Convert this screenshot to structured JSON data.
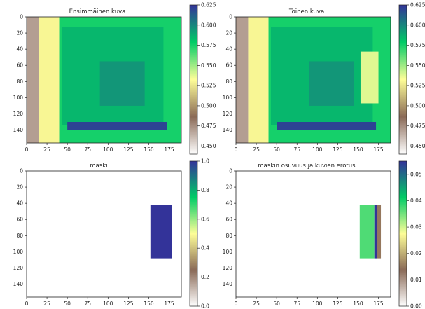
{
  "chart_data": [
    {
      "type": "heatmap",
      "title": "Ensimmäinen kuva",
      "xlabel": "",
      "ylabel": "",
      "xlim": [
        0,
        190
      ],
      "ylim": [
        156,
        0
      ],
      "xticks": [
        "0",
        "25",
        "50",
        "75",
        "100",
        "125",
        "150",
        "175"
      ],
      "yticks": [
        "0",
        "20",
        "40",
        "60",
        "80",
        "100",
        "120",
        "140"
      ],
      "colorbar": {
        "min": 0.44,
        "max": 0.625,
        "ticks": [
          "0.450",
          "0.475",
          "0.500",
          "0.525",
          "0.550",
          "0.575",
          "0.600",
          "0.625"
        ]
      },
      "colormap": "terrain_r",
      "regions": [
        {
          "name": "left margin",
          "x": [
            0,
            15
          ],
          "y": [
            0,
            156
          ],
          "value": 0.47
        },
        {
          "name": "edge ramp",
          "x": [
            15,
            40
          ],
          "y": [
            0,
            156
          ],
          "value": 0.53
        },
        {
          "name": "background",
          "x": [
            40,
            190
          ],
          "y": [
            0,
            156
          ],
          "value": 0.575
        },
        {
          "name": "plate",
          "x": [
            43,
            168
          ],
          "y": [
            13,
            134
          ],
          "value": 0.585
        },
        {
          "name": "center low",
          "x": [
            90,
            145
          ],
          "y": [
            55,
            110
          ],
          "value": 0.595
        },
        {
          "name": "bottom band",
          "x": [
            50,
            172
          ],
          "y": [
            130,
            140
          ],
          "value": 0.62
        }
      ]
    },
    {
      "type": "heatmap",
      "title": "Toinen kuva",
      "xlabel": "",
      "ylabel": "",
      "xlim": [
        0,
        190
      ],
      "ylim": [
        156,
        0
      ],
      "xticks": [
        "0",
        "25",
        "50",
        "75",
        "100",
        "125",
        "150",
        "175"
      ],
      "yticks": [
        "0",
        "20",
        "40",
        "60",
        "80",
        "100",
        "120",
        "140"
      ],
      "colorbar": {
        "min": 0.44,
        "max": 0.625,
        "ticks": [
          "0.450",
          "0.475",
          "0.500",
          "0.525",
          "0.550",
          "0.575",
          "0.600",
          "0.625"
        ]
      },
      "colormap": "terrain_r",
      "regions": [
        {
          "name": "left margin",
          "x": [
            0,
            15
          ],
          "y": [
            0,
            156
          ],
          "value": 0.47
        },
        {
          "name": "edge ramp",
          "x": [
            15,
            40
          ],
          "y": [
            0,
            156
          ],
          "value": 0.53
        },
        {
          "name": "background",
          "x": [
            40,
            190
          ],
          "y": [
            0,
            156
          ],
          "value": 0.575
        },
        {
          "name": "plate",
          "x": [
            43,
            168
          ],
          "y": [
            13,
            134
          ],
          "value": 0.585
        },
        {
          "name": "center low",
          "x": [
            90,
            145
          ],
          "y": [
            55,
            110
          ],
          "value": 0.595
        },
        {
          "name": "bottom band",
          "x": [
            50,
            172
          ],
          "y": [
            130,
            140
          ],
          "value": 0.62
        },
        {
          "name": "object",
          "x": [
            153,
            175
          ],
          "y": [
            43,
            107
          ],
          "value": 0.538
        }
      ]
    },
    {
      "type": "heatmap",
      "title": "maski",
      "xlabel": "",
      "ylabel": "",
      "xlim": [
        0,
        190
      ],
      "ylim": [
        156,
        0
      ],
      "xticks": [
        "0",
        "25",
        "50",
        "75",
        "100",
        "125",
        "150",
        "175"
      ],
      "yticks": [
        "0",
        "20",
        "40",
        "60",
        "80",
        "100",
        "120",
        "140"
      ],
      "colorbar": {
        "min": 0.0,
        "max": 1.0,
        "ticks": [
          "0.0",
          "0.2",
          "0.4",
          "0.6",
          "0.8",
          "1.0"
        ]
      },
      "colormap": "terrain_r",
      "regions": [
        {
          "name": "mask",
          "x": [
            152,
            178
          ],
          "y": [
            42,
            108
          ],
          "value": 1.0
        }
      ]
    },
    {
      "type": "heatmap",
      "title": "maskin osuvuus ja kuvien erotus",
      "xlabel": "",
      "ylabel": "",
      "xlim": [
        0,
        190
      ],
      "ylim": [
        156,
        0
      ],
      "xticks": [
        "0",
        "25",
        "50",
        "75",
        "100",
        "125",
        "150",
        "175"
      ],
      "yticks": [
        "0",
        "20",
        "40",
        "60",
        "80",
        "100",
        "120",
        "140"
      ],
      "colorbar": {
        "min": 0.0,
        "max": 0.055,
        "ticks": [
          "0.00",
          "0.01",
          "0.02",
          "0.03",
          "0.04",
          "0.05"
        ]
      },
      "colormap": "terrain_r",
      "regions": [
        {
          "name": "difference",
          "x": [
            152,
            170
          ],
          "y": [
            42,
            108
          ],
          "value": 0.037
        },
        {
          "name": "edge strip",
          "x": [
            170,
            173
          ],
          "y": [
            42,
            108
          ],
          "value": 0.055
        },
        {
          "name": "outer strip",
          "x": [
            173,
            178
          ],
          "y": [
            42,
            108
          ],
          "value": 0.015
        }
      ]
    }
  ]
}
